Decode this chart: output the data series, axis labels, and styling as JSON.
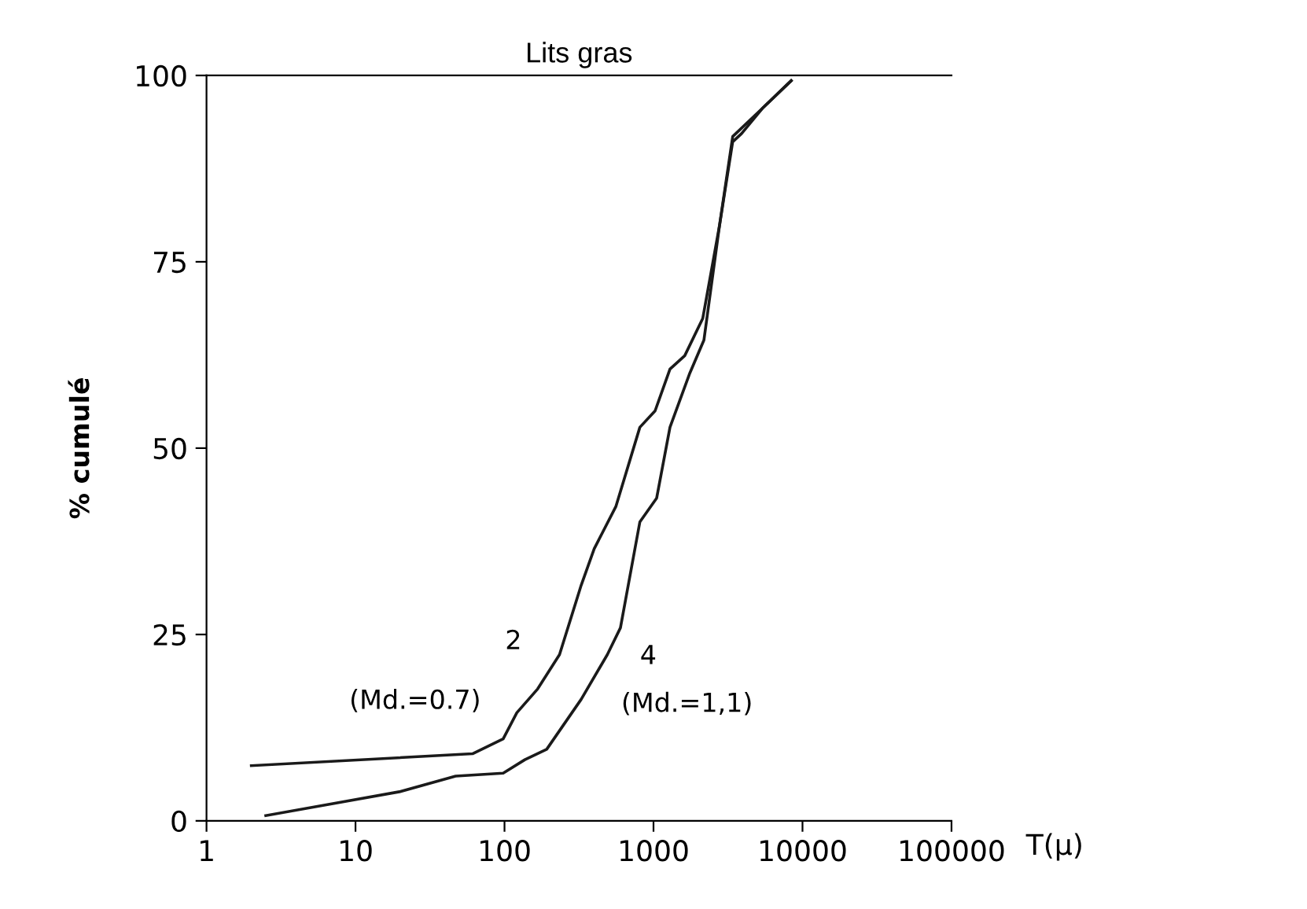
{
  "chart_data": {
    "type": "line",
    "title": "Lits gras",
    "xlabel": "T(μ)",
    "ylabel": "% cumulé",
    "log": "x",
    "xlim": [
      1,
      100000
    ],
    "xticks": [
      1,
      10,
      100,
      1000,
      10000,
      100000
    ],
    "ylim": [
      0,
      100
    ],
    "yticks": [
      0,
      25,
      50,
      75,
      100
    ],
    "grid": false,
    "legend": false,
    "marker": "none",
    "line_style": "solid",
    "series": [
      {
        "color": "#1a1a1a",
        "x": [
          2.0,
          61,
          98,
          121,
          167,
          234,
          327,
          400,
          560,
          810,
          1025,
          1290,
          1620,
          2140,
          2770,
          3400,
          3900,
          5450,
          8400
        ],
        "values": [
          7.4,
          9.0,
          11.0,
          14.5,
          17.7,
          22.3,
          31.6,
          36.5,
          42.2,
          52.8,
          55.0,
          60.6,
          62.4,
          67.4,
          79.8,
          91.1,
          92.2,
          95.7,
          99.3
        ]
      },
      {
        "color": "#1a1a1a",
        "x": [
          2.5,
          19.7,
          47,
          98,
          137,
          192,
          327,
          490,
          600,
          810,
          1050,
          1290,
          1740,
          2180,
          2770,
          3400,
          5450,
          8400
        ],
        "values": [
          0.7,
          3.9,
          6.0,
          6.4,
          8.2,
          9.6,
          16.3,
          22.3,
          25.9,
          40.1,
          43.3,
          52.8,
          59.9,
          64.5,
          79.8,
          91.8,
          95.7,
          99.3
        ]
      }
    ],
    "annotations": [
      "2",
      "(Md.=0.7)",
      "4",
      "(Md.=1,1)"
    ]
  }
}
